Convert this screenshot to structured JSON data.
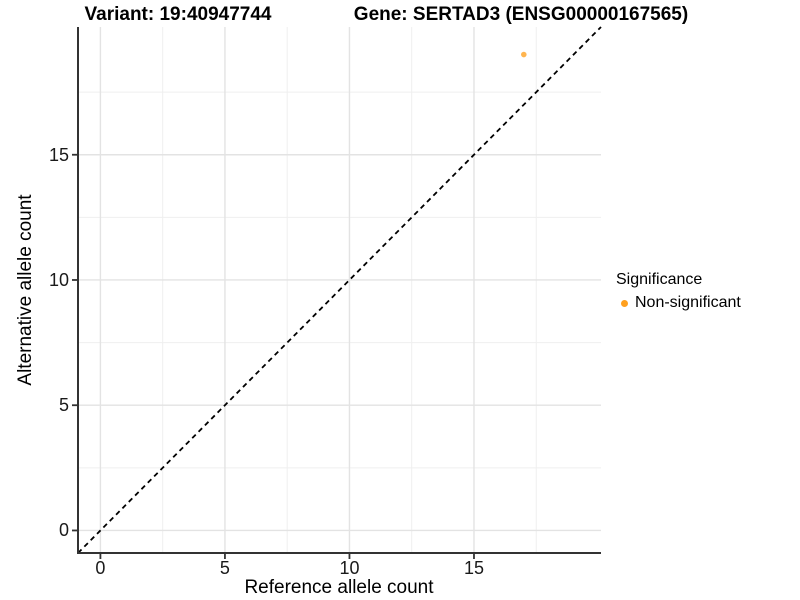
{
  "titles": {
    "variant": "Variant: 19:40947744",
    "gene": "Gene: SERTAD3 (ENSG00000167565)"
  },
  "axes": {
    "x_label": "Reference allele count",
    "y_label": "Alternative allele count"
  },
  "legend": {
    "title": "Significance",
    "items": [
      {
        "label": "Non-significant",
        "color": "#FFA01E",
        "marker": "circle-icon"
      }
    ]
  },
  "colors": {
    "point_orange": "#FFA01E",
    "grid_major": "#E3E3E3",
    "grid_minor": "#EFEFEF",
    "axis_line": "#333333",
    "identity_line": "#000000",
    "background": "#FFFFFF"
  },
  "chart_data": {
    "type": "scatter",
    "title": "Variant: 19:40947744 — Gene: SERTAD3 (ENSG00000167565)",
    "xlabel": "Reference allele count",
    "ylabel": "Alternative allele count",
    "xlim": [
      -0.9,
      20.1
    ],
    "ylim": [
      -0.9,
      20.1
    ],
    "x_ticks": [
      0,
      5,
      10,
      15
    ],
    "y_ticks": [
      0,
      5,
      10,
      15
    ],
    "x_minor_ticks": [
      2.5,
      7.5,
      12.5,
      17.5
    ],
    "y_minor_ticks": [
      2.5,
      7.5,
      12.5,
      17.5
    ],
    "grid": true,
    "legend_position": "right",
    "reference_line": {
      "kind": "identity y=x",
      "style": "dashed",
      "color": "#000000"
    },
    "series": [
      {
        "name": "Non-significant",
        "color": "#FFA01E",
        "points": [
          {
            "x": 17,
            "y": 19
          }
        ]
      }
    ]
  }
}
